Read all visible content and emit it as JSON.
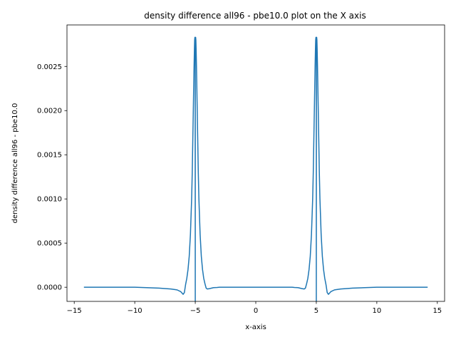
{
  "chart_data": {
    "type": "line",
    "title": "density difference all96 - pbe10.0 plot on the X axis",
    "xlabel": "x-axis",
    "ylabel": "density difference all96 - pbe10.0",
    "xlim": [
      -15.6,
      15.6
    ],
    "ylim": [
      -0.00016,
      0.00297
    ],
    "xticks": [
      -15,
      -10,
      -5,
      0,
      5,
      10,
      15
    ],
    "xtick_labels": [
      "−15",
      "−10",
      "−5",
      "0",
      "5",
      "10",
      "15"
    ],
    "yticks": [
      0.0,
      0.0005,
      0.001,
      0.0015,
      0.002,
      0.0025
    ],
    "ytick_labels": [
      "0.0000",
      "0.0005",
      "0.0010",
      "0.0015",
      "0.0020",
      "0.0025"
    ],
    "grid": false,
    "line_color": "#1f77b4",
    "series": [
      {
        "x": [
          -14.2,
          -10.0,
          -8.0,
          -7.0,
          -6.5,
          -6.2,
          -6.0,
          -5.9,
          -5.8,
          -5.7,
          -5.6,
          -5.5,
          -5.4,
          -5.3,
          -5.25,
          -5.2,
          -5.15,
          -5.1,
          -5.07,
          -5.05,
          -5.03,
          -5.01,
          -5.0,
          -5.0,
          -4.99,
          -4.97,
          -4.95,
          -4.93,
          -4.9,
          -4.85,
          -4.8,
          -4.75,
          -4.7,
          -4.6,
          -4.5,
          -4.4,
          -4.3,
          -4.2,
          -4.1,
          -4.0,
          -3.8,
          -3.5,
          -3.2,
          -3.0,
          -2.5,
          -2.0,
          0.0,
          2.0,
          2.5,
          3.0,
          3.2,
          3.5,
          3.8,
          4.0,
          4.1,
          4.2,
          4.3,
          4.4,
          4.5,
          4.6,
          4.7,
          4.75,
          4.8,
          4.85,
          4.9,
          4.93,
          4.95,
          4.97,
          4.99,
          5.0,
          5.0,
          5.01,
          5.03,
          5.05,
          5.07,
          5.1,
          5.15,
          5.2,
          5.25,
          5.3,
          5.4,
          5.5,
          5.6,
          5.7,
          5.8,
          5.9,
          6.0,
          6.2,
          6.5,
          7.0,
          8.0,
          10.0,
          14.2
        ],
        "y": [
          0.0,
          0.0,
          -1e-05,
          -2e-05,
          -3e-05,
          -5e-05,
          -8e-05,
          -6e-05,
          3e-05,
          0.0001,
          0.0002,
          0.00035,
          0.0006,
          0.001,
          0.0013,
          0.0017,
          0.0021,
          0.0025,
          0.0027,
          0.0028,
          0.00283,
          0.0028,
          -0.00016,
          0.0026,
          0.0028,
          0.00283,
          0.0028,
          0.0027,
          0.0025,
          0.0021,
          0.0017,
          0.0013,
          0.001,
          0.0006,
          0.00035,
          0.0002,
          0.0001,
          4e-05,
          -1e-05,
          -2e-05,
          -1.5e-05,
          -5e-06,
          -3e-06,
          0.0,
          0.0,
          0.0,
          0.0,
          0.0,
          0.0,
          0.0,
          -3e-06,
          -5e-06,
          -1.5e-05,
          -2e-05,
          -1e-05,
          4e-05,
          0.0001,
          0.0002,
          0.00035,
          0.0006,
          0.001,
          0.0013,
          0.0017,
          0.0021,
          0.0025,
          0.0027,
          0.0028,
          0.00283,
          0.0028,
          0.0026,
          -0.00016,
          0.0028,
          0.00283,
          0.0028,
          0.0027,
          0.0025,
          0.0021,
          0.0017,
          0.0013,
          0.001,
          0.0006,
          0.00035,
          0.0002,
          0.0001,
          3e-05,
          -6e-05,
          -8e-05,
          -5e-05,
          -3e-05,
          -2e-05,
          -1e-05,
          0.0,
          0.0
        ]
      }
    ]
  }
}
